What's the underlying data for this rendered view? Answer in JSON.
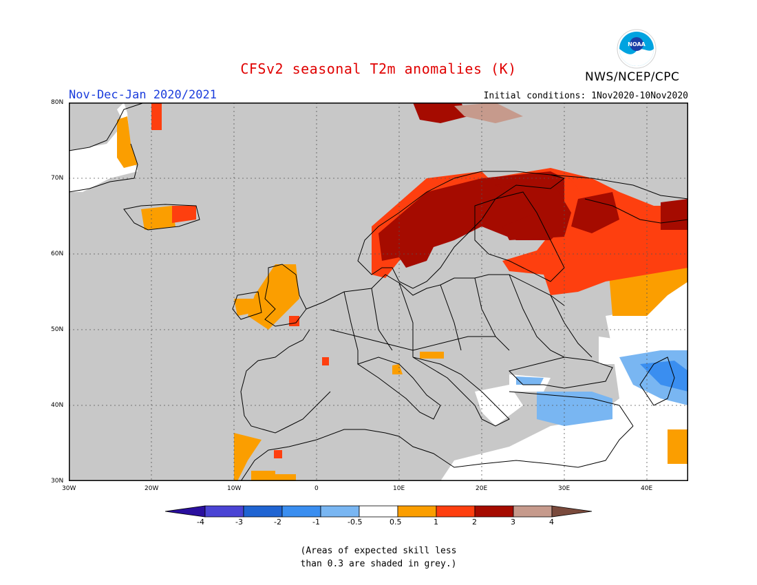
{
  "title": "CFSv2 seasonal T2m anomalies (K)",
  "period": "Nov-Dec-Jan 2020/2021",
  "initial_conditions": "Initial conditions: 1Nov2020-10Nov2020",
  "agency": "NWS/NCEP/CPC",
  "logo_text": "NOAA",
  "lat_labels": [
    "80N",
    "70N",
    "60N",
    "50N",
    "40N",
    "30N"
  ],
  "lon_labels": [
    "30W",
    "20W",
    "10W",
    "0",
    "10E",
    "20E",
    "30E",
    "40E"
  ],
  "colorbar": {
    "labels": [
      "-4",
      "-3",
      "-2",
      "-1",
      "-0.5",
      "0.5",
      "1",
      "2",
      "3",
      "4"
    ],
    "colors": [
      "#2a0f9e",
      "#4a44d4",
      "#1f64d2",
      "#3a8ef0",
      "#79b6f2",
      "#ffffff",
      "#fb9e00",
      "#fe3f0f",
      "#a50b00",
      "#c69a8c",
      "#7a4a3c"
    ]
  },
  "note_line1": "(Areas of expected skill less",
  "note_line2": "than 0.3 are shaded in grey.)",
  "legend_colors": {
    "grey": "#c8c8c8",
    "orange": "#fb9e00",
    "red": "#fe3f0f",
    "darkred": "#a50b00",
    "brown": "#c69a8c",
    "lightblue": "#79b6f2",
    "blue": "#3a8ef0"
  }
}
